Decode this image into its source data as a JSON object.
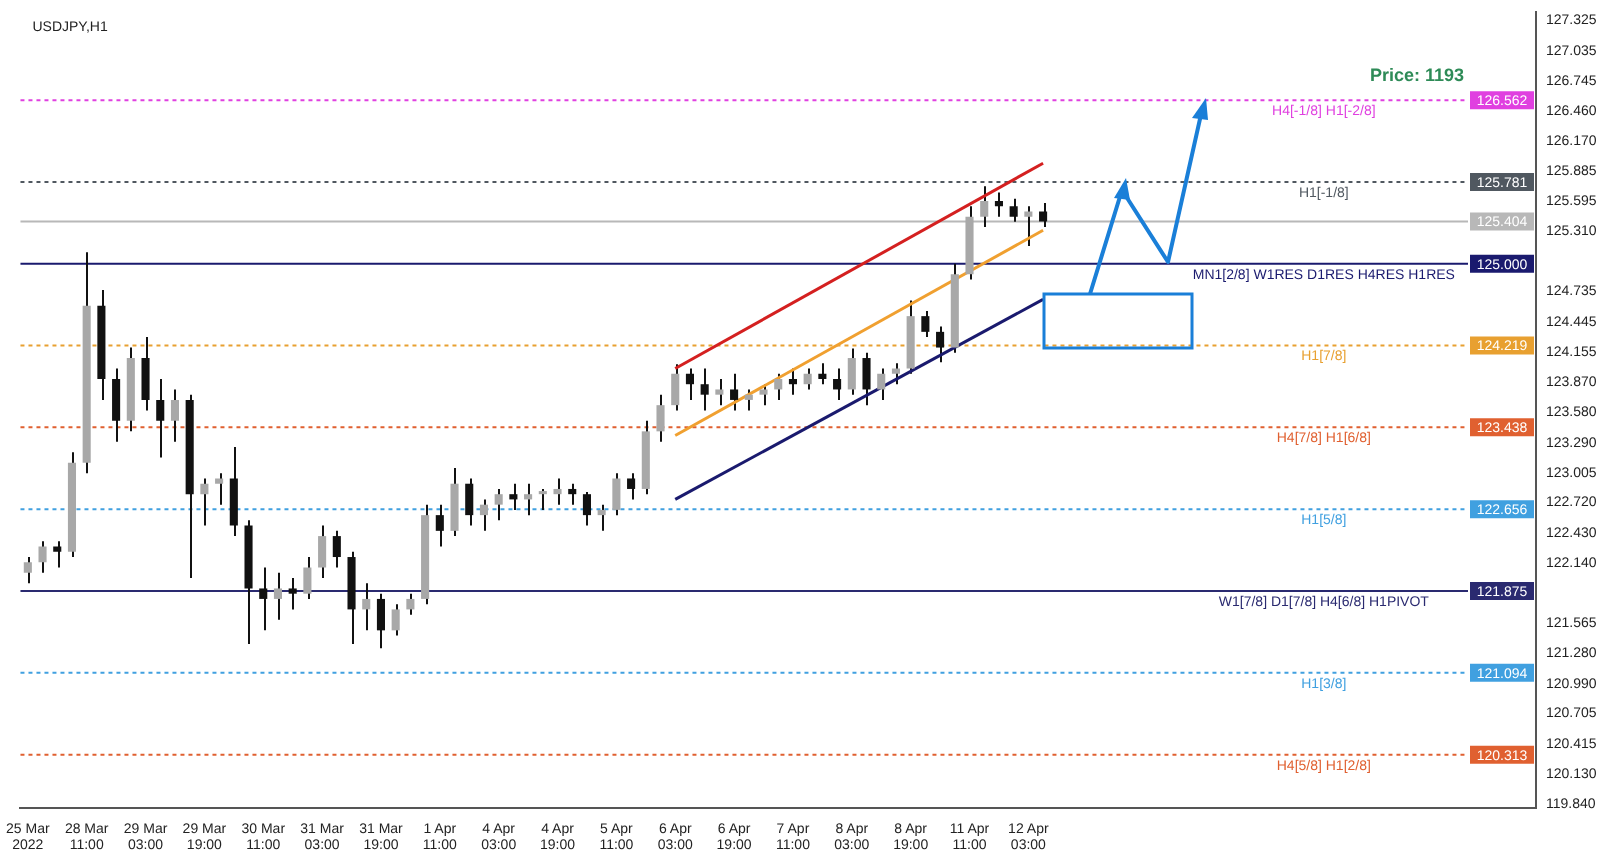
{
  "chart_data": {
    "type": "candlestick",
    "title": "USDJPY,H1",
    "categories": [
      "25 Mar 2022",
      null,
      null,
      null,
      "28 Mar 11:00",
      null,
      null,
      null,
      "29 Mar 03:00",
      null,
      null,
      null,
      "29 Mar 19:00",
      null,
      null,
      null,
      "30 Mar 11:00",
      null,
      null,
      null,
      "31 Mar 03:00",
      null,
      null,
      null,
      "31 Mar 19:00",
      null,
      null,
      null,
      "1 Apr 11:00",
      null,
      null,
      null,
      "4 Apr 03:00",
      null,
      null,
      null,
      "4 Apr 19:00",
      null,
      null,
      null,
      "5 Apr 11:00",
      null,
      null,
      null,
      "6 Apr 03:00",
      null,
      null,
      null,
      "6 Apr 19:00",
      null,
      null,
      null,
      "7 Apr 11:00",
      null,
      null,
      null,
      "8 Apr 03:00",
      null,
      null,
      null,
      "8 Apr 19:00",
      null,
      null,
      null,
      "11 Apr 11:00",
      null,
      null,
      null,
      "12 Apr 03:00",
      null,
      null,
      null,
      null,
      null,
      null,
      null,
      null,
      null,
      null,
      null,
      null,
      null,
      null,
      null,
      null,
      null,
      null,
      null,
      null,
      null,
      null,
      null,
      null,
      null,
      null,
      null,
      null,
      null,
      null,
      null,
      null,
      null,
      null
    ],
    "ohlc": [
      [
        122.05,
        122.2,
        121.95,
        122.15
      ],
      [
        122.15,
        122.35,
        122.05,
        122.3
      ],
      [
        122.3,
        122.35,
        122.1,
        122.25
      ],
      [
        122.25,
        123.2,
        122.2,
        123.1
      ],
      [
        123.1,
        125.11,
        123.0,
        124.6
      ],
      [
        124.6,
        124.75,
        123.7,
        123.9
      ],
      [
        123.9,
        124.0,
        123.3,
        123.5
      ],
      [
        123.5,
        124.2,
        123.4,
        124.1
      ],
      [
        124.1,
        124.3,
        123.6,
        123.7
      ],
      [
        123.7,
        123.9,
        123.15,
        123.5
      ],
      [
        123.5,
        123.8,
        123.3,
        123.7
      ],
      [
        123.7,
        123.75,
        122.0,
        122.8
      ],
      [
        122.8,
        122.95,
        122.5,
        122.9
      ],
      [
        122.9,
        123.0,
        122.7,
        122.95
      ],
      [
        122.95,
        123.25,
        122.4,
        122.5
      ],
      [
        122.5,
        122.55,
        121.37,
        121.9
      ],
      [
        121.9,
        122.1,
        121.5,
        121.8
      ],
      [
        121.8,
        122.05,
        121.6,
        121.9
      ],
      [
        121.9,
        122.0,
        121.7,
        121.85
      ],
      [
        121.85,
        122.2,
        121.8,
        122.1
      ],
      [
        122.1,
        122.5,
        122.0,
        122.4
      ],
      [
        122.4,
        122.45,
        122.1,
        122.2
      ],
      [
        122.2,
        122.25,
        121.37,
        121.7
      ],
      [
        121.7,
        121.95,
        121.5,
        121.8
      ],
      [
        121.8,
        121.85,
        121.33,
        121.5
      ],
      [
        121.5,
        121.75,
        121.45,
        121.7
      ],
      [
        121.7,
        121.85,
        121.65,
        121.8
      ],
      [
        121.8,
        122.7,
        121.75,
        122.6
      ],
      [
        122.6,
        122.7,
        122.3,
        122.45
      ],
      [
        122.45,
        123.05,
        122.4,
        122.9
      ],
      [
        122.9,
        122.95,
        122.5,
        122.6
      ],
      [
        122.6,
        122.75,
        122.45,
        122.7
      ],
      [
        122.7,
        122.85,
        122.55,
        122.8
      ],
      [
        122.8,
        122.9,
        122.65,
        122.75
      ],
      [
        122.75,
        122.9,
        122.6,
        122.8
      ],
      [
        122.8,
        122.85,
        122.65,
        122.83
      ],
      [
        122.8,
        122.95,
        122.7,
        122.85
      ],
      [
        122.85,
        122.9,
        122.7,
        122.8
      ],
      [
        122.8,
        122.82,
        122.5,
        122.6
      ],
      [
        122.6,
        122.7,
        122.45,
        122.65
      ],
      [
        122.65,
        123.0,
        122.6,
        122.95
      ],
      [
        122.95,
        123.0,
        122.75,
        122.85
      ],
      [
        122.85,
        123.5,
        122.8,
        123.4
      ],
      [
        123.4,
        123.75,
        123.3,
        123.65
      ],
      [
        123.65,
        124.04,
        123.6,
        123.95
      ],
      [
        123.95,
        124.0,
        123.7,
        123.85
      ],
      [
        123.85,
        124.0,
        123.6,
        123.75
      ],
      [
        123.75,
        123.9,
        123.65,
        123.8
      ],
      [
        123.8,
        123.95,
        123.6,
        123.7
      ],
      [
        123.7,
        123.8,
        123.6,
        123.75
      ],
      [
        123.75,
        123.85,
        123.65,
        123.8
      ],
      [
        123.8,
        123.95,
        123.7,
        123.9
      ],
      [
        123.9,
        124.0,
        123.75,
        123.85
      ],
      [
        123.85,
        124.0,
        123.8,
        123.95
      ],
      [
        123.95,
        124.05,
        123.85,
        123.9
      ],
      [
        123.9,
        124.0,
        123.7,
        123.8
      ],
      [
        123.8,
        124.19,
        123.75,
        124.1
      ],
      [
        124.1,
        124.15,
        123.65,
        123.8
      ],
      [
        123.8,
        124.0,
        123.7,
        123.95
      ],
      [
        123.95,
        124.05,
        123.85,
        124.0
      ],
      [
        124.0,
        124.65,
        123.95,
        124.5
      ],
      [
        124.5,
        124.55,
        124.3,
        124.35
      ],
      [
        124.35,
        124.4,
        124.06,
        124.2
      ],
      [
        124.2,
        125.0,
        124.15,
        124.9
      ],
      [
        124.9,
        125.55,
        124.85,
        125.45
      ],
      [
        125.45,
        125.74,
        125.35,
        125.6
      ],
      [
        125.6,
        125.68,
        125.45,
        125.55
      ],
      [
        125.55,
        125.62,
        125.4,
        125.45
      ],
      [
        125.45,
        125.55,
        125.17,
        125.5
      ],
      [
        125.5,
        125.58,
        125.35,
        125.404
      ],
      null,
      null,
      null,
      null,
      null,
      null,
      null,
      null,
      null,
      null,
      null,
      null,
      null,
      null,
      null,
      null,
      null,
      null,
      null,
      null,
      null,
      null,
      null,
      null,
      null,
      null,
      null,
      null,
      null,
      null,
      null,
      null,
      null
    ],
    "series": [
      {
        "type": "line",
        "color": "#d42020",
        "values": [
          null,
          null,
          null,
          null,
          null,
          null,
          null,
          null,
          null,
          null,
          null,
          null,
          null,
          null,
          null,
          null,
          null,
          null,
          null,
          null,
          null,
          null,
          null,
          null,
          null,
          null,
          null,
          null,
          null,
          null,
          null,
          null,
          null,
          null,
          null,
          null,
          null,
          null,
          null,
          null,
          null,
          null,
          null,
          null,
          124.0,
          null,
          null,
          null,
          null,
          null,
          null,
          null,
          null,
          null,
          null,
          null,
          null,
          null,
          null,
          null,
          null,
          null,
          null,
          null,
          null,
          null,
          null,
          null,
          null,
          125.96,
          null,
          null,
          null,
          null,
          null,
          null,
          null,
          null,
          null,
          null,
          null,
          null,
          null,
          null,
          null,
          null,
          null,
          null,
          null,
          null,
          null,
          null,
          null,
          null,
          null,
          null,
          null,
          null,
          null,
          null,
          null,
          null,
          null
        ]
      },
      {
        "type": "line",
        "color": "#f0a030",
        "values": [
          null,
          null,
          null,
          null,
          null,
          null,
          null,
          null,
          null,
          null,
          null,
          null,
          null,
          null,
          null,
          null,
          null,
          null,
          null,
          null,
          null,
          null,
          null,
          null,
          null,
          null,
          null,
          null,
          null,
          null,
          null,
          null,
          null,
          null,
          null,
          null,
          null,
          null,
          null,
          null,
          null,
          null,
          null,
          null,
          123.36,
          null,
          null,
          null,
          null,
          null,
          null,
          null,
          null,
          null,
          null,
          null,
          null,
          null,
          null,
          null,
          null,
          null,
          null,
          null,
          null,
          null,
          null,
          null,
          null,
          125.32,
          null,
          null,
          null,
          null,
          null,
          null,
          null,
          null,
          null,
          null,
          null,
          null,
          null,
          null,
          null,
          null,
          null,
          null,
          null,
          null,
          null,
          null,
          null,
          null,
          null,
          null,
          null,
          null,
          null,
          null,
          null,
          null,
          null
        ]
      },
      {
        "type": "line",
        "color": "#1a1a6e",
        "values": [
          null,
          null,
          null,
          null,
          null,
          null,
          null,
          null,
          null,
          null,
          null,
          null,
          null,
          null,
          null,
          null,
          null,
          null,
          null,
          null,
          null,
          null,
          null,
          null,
          null,
          null,
          null,
          null,
          null,
          null,
          null,
          null,
          null,
          null,
          null,
          null,
          null,
          null,
          null,
          null,
          null,
          null,
          null,
          null,
          122.75,
          null,
          null,
          null,
          null,
          null,
          null,
          null,
          null,
          null,
          null,
          null,
          null,
          null,
          null,
          null,
          null,
          null,
          null,
          null,
          null,
          null,
          null,
          null,
          null,
          124.66,
          null,
          null,
          null,
          null,
          null,
          null,
          null,
          null,
          null,
          null,
          null,
          null,
          null,
          null,
          null,
          null,
          null,
          null,
          null,
          null,
          null,
          null,
          null,
          null,
          null,
          null,
          null,
          null,
          null,
          null,
          null,
          null,
          null
        ]
      }
    ],
    "ylim": [
      119.8,
      127.4
    ],
    "yticks": [
      {
        "value": 127.325,
        "label": "127.325"
      },
      {
        "value": 127.035,
        "label": "127.035"
      },
      {
        "value": 126.745,
        "label": "126.745"
      },
      {
        "value": 126.46,
        "label": "126.460"
      },
      {
        "value": 126.17,
        "label": "126.170"
      },
      {
        "value": 125.885,
        "label": "125.885"
      },
      {
        "value": 125.595,
        "label": "125.595"
      },
      {
        "value": 125.31,
        "label": "125.310"
      },
      {
        "value": 124.735,
        "label": "124.735"
      },
      {
        "value": 124.445,
        "label": "124.445"
      },
      {
        "value": 124.155,
        "label": "124.155"
      },
      {
        "value": 123.87,
        "label": "123.870"
      },
      {
        "value": 123.58,
        "label": "123.580"
      },
      {
        "value": 123.29,
        "label": "123.290"
      },
      {
        "value": 123.005,
        "label": "123.005"
      },
      {
        "value": 122.72,
        "label": "122.720"
      },
      {
        "value": 122.43,
        "label": "122.430"
      },
      {
        "value": 122.14,
        "label": "122.140"
      },
      {
        "value": 121.565,
        "label": "121.565"
      },
      {
        "value": 121.28,
        "label": "121.280"
      },
      {
        "value": 120.99,
        "label": "120.990"
      },
      {
        "value": 120.705,
        "label": "120.705"
      },
      {
        "value": 120.415,
        "label": "120.415"
      },
      {
        "value": 120.13,
        "label": "120.130"
      },
      {
        "value": 119.84,
        "label": "119.840"
      }
    ],
    "ref_lines": [
      {
        "axis": "y",
        "value": 126.562,
        "label": "126.562",
        "color": "#e040e0",
        "line_style": "dotted"
      },
      {
        "axis": "y",
        "value": 125.781,
        "label": "125.781",
        "color": "#505860",
        "line_style": "dotted"
      },
      {
        "axis": "y",
        "value": 125.404,
        "label": "125.404",
        "color": "#b8b8b8",
        "line_style": "solid"
      },
      {
        "axis": "y",
        "value": 125.0,
        "label": "125.000",
        "color": "#1a1a6e",
        "line_style": "solid"
      },
      {
        "axis": "y",
        "value": 124.219,
        "label": "124.219",
        "color": "#e8a030",
        "line_style": "dotted"
      },
      {
        "axis": "y",
        "value": 123.438,
        "label": "123.438",
        "color": "#e06030",
        "line_style": "dotted"
      },
      {
        "axis": "y",
        "value": 122.656,
        "label": "122.656",
        "color": "#40a0e0",
        "line_style": "dotted"
      },
      {
        "axis": "y",
        "value": 121.875,
        "label": "121.875",
        "color": "#2a2a70",
        "line_style": "solid"
      },
      {
        "axis": "y",
        "value": 121.094,
        "label": "121.094",
        "color": "#40a0e0",
        "line_style": "dotted"
      },
      {
        "axis": "y",
        "value": 120.313,
        "label": "120.313",
        "color": "#e06030",
        "line_style": "dotted"
      }
    ],
    "annotations": [
      "Price: 1193",
      {
        "text": "H4[-1/8] H1[-2/8]",
        "y": 126.562
      },
      {
        "text": "H1[-1/8]",
        "y": 125.781
      },
      {
        "text": "MN1[2/8] W1RES D1RES H4RES H1RES",
        "y": 125.0
      },
      {
        "text": "H1[7/8]",
        "y": 124.219
      },
      {
        "text": "H4[7/8] H1[6/8]",
        "y": 123.438
      },
      {
        "text": "H1[5/8]",
        "y": 122.656
      },
      {
        "text": "W1[7/8] D1[7/8] H4[6/8] H1PIVOT",
        "y": 121.875
      },
      {
        "text": "H1[3/8]",
        "y": 121.094
      },
      {
        "text": "H4[5/8] H1[2/8]",
        "y": 120.313
      }
    ]
  }
}
